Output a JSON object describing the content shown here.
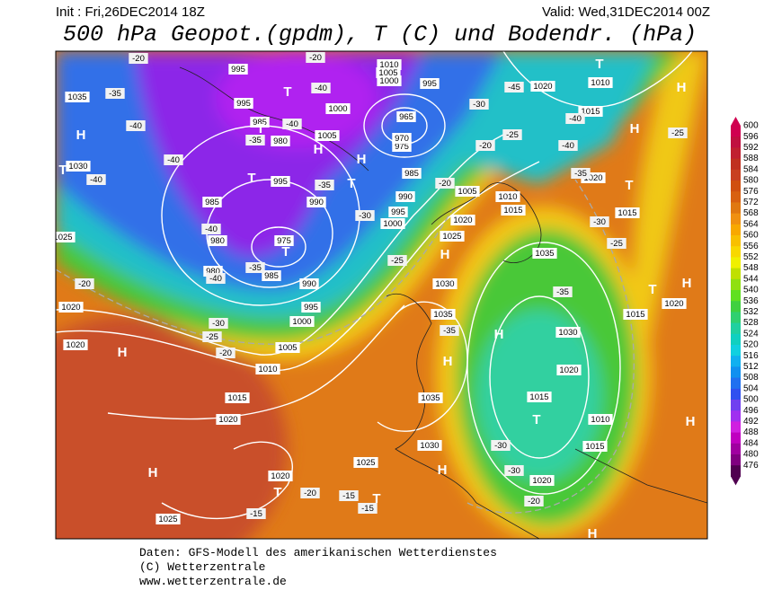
{
  "header": {
    "init": "Init : Fri,26DEC2014 18Z",
    "valid": "Valid: Wed,31DEC2014 00Z",
    "title": "500 hPa Geopot.(gpdm), T (C) und Bodendr. (hPa)"
  },
  "legend": {
    "labels": [
      600,
      596,
      592,
      588,
      584,
      580,
      576,
      572,
      568,
      564,
      560,
      556,
      552,
      548,
      544,
      540,
      536,
      532,
      528,
      524,
      520,
      516,
      512,
      508,
      504,
      500,
      496,
      492,
      488,
      484,
      480,
      476
    ]
  },
  "map": {
    "pressure_labels": [
      "995",
      "995",
      "985",
      "980",
      "1000",
      "1005",
      "995",
      "990",
      "985",
      "980",
      "975",
      "980",
      "985",
      "990",
      "995",
      "1000",
      "1005",
      "1010",
      "1015",
      "1020",
      "1025",
      "1020",
      "1025",
      "1030",
      "1035",
      "1035",
      "1030",
      "1025",
      "1020",
      "1015",
      "1010",
      "1005",
      "1000",
      "995",
      "990",
      "985",
      "975",
      "970",
      "965",
      "1010",
      "1005",
      "1000",
      "995",
      "1020",
      "1010",
      "1015",
      "1020",
      "1015",
      "1035",
      "1030",
      "1020",
      "1015",
      "1010",
      "1015",
      "1020",
      "1020",
      "1015",
      "1020",
      "1020",
      "1025",
      "1030",
      "1035"
    ],
    "temperature_labels": [
      "-20",
      "-35",
      "-40",
      "-40",
      "-40",
      "-40",
      "-35",
      "-40",
      "-30",
      "-25",
      "-20",
      "-20",
      "-35",
      "-40",
      "-35",
      "-30",
      "-25",
      "-20",
      "-20",
      "-25",
      "-30",
      "-45",
      "-40",
      "-40",
      "-35",
      "-30",
      "-25",
      "-35",
      "-25",
      "-35",
      "-30",
      "-30",
      "-20",
      "-20",
      "-15",
      "-15",
      "-15",
      "-20",
      "-40"
    ],
    "pressure_centers": [
      "H",
      "T",
      "H",
      "H",
      "T",
      "T",
      "H",
      "H",
      "H",
      "H",
      "T",
      "T",
      "H",
      "H",
      "T",
      "T",
      "T",
      "T",
      "H",
      "T",
      "H",
      "T",
      "H",
      "H",
      "H",
      "T"
    ]
  },
  "footer": {
    "line1": "Daten: GFS-Modell des amerikanischen Wetterdienstes",
    "line2": "(C) Wetterzentrale",
    "line3": "www.wetterzentrale.de"
  }
}
